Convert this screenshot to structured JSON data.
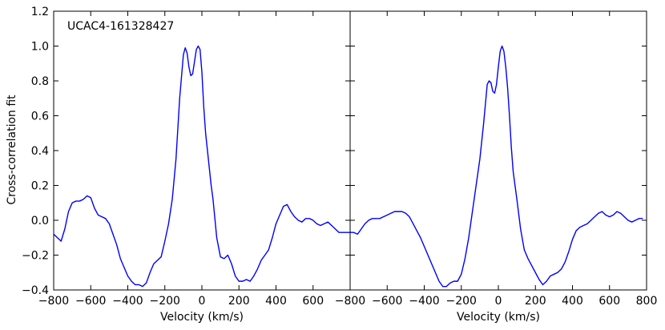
{
  "chart_data": {
    "type": "line",
    "ylabel": "Cross-correlation fit",
    "ylim": [
      -0.4,
      1.2
    ],
    "yticks": [
      -0.4,
      -0.2,
      0.0,
      0.2,
      0.4,
      0.6,
      0.8,
      1.0,
      1.2
    ],
    "ytick_labels": [
      "−0.4",
      "−0.2",
      "0.0",
      "0.2",
      "0.4",
      "0.6",
      "0.8",
      "1.0",
      "1.2"
    ],
    "line_color": "#0000ff",
    "grid": false,
    "panels": [
      {
        "xlabel": "Velocity (km/s)",
        "annotation": "UCAC4-161328427",
        "xlim": [
          -800,
          800
        ],
        "xticks": [
          -800,
          -600,
          -400,
          -200,
          0,
          200,
          400,
          600
        ],
        "xtick_labels": [
          "−800",
          "−600",
          "−400",
          "−200",
          "0",
          "200",
          "400",
          "600"
        ],
        "x": [
          -800,
          -780,
          -760,
          -740,
          -720,
          -700,
          -680,
          -660,
          -640,
          -620,
          -600,
          -580,
          -560,
          -540,
          -520,
          -500,
          -480,
          -460,
          -440,
          -420,
          -400,
          -380,
          -360,
          -340,
          -320,
          -300,
          -280,
          -260,
          -240,
          -220,
          -200,
          -180,
          -160,
          -140,
          -120,
          -100,
          -90,
          -80,
          -70,
          -60,
          -50,
          -40,
          -30,
          -20,
          -10,
          0,
          10,
          20,
          30,
          40,
          50,
          60,
          80,
          100,
          120,
          140,
          160,
          180,
          200,
          220,
          240,
          260,
          280,
          300,
          320,
          340,
          360,
          380,
          400,
          420,
          440,
          460,
          480,
          500,
          520,
          540,
          560,
          580,
          600,
          620,
          640,
          660,
          680,
          700,
          720,
          740,
          760,
          780,
          800
        ],
        "y": [
          -0.08,
          -0.1,
          -0.12,
          -0.05,
          0.05,
          0.1,
          0.11,
          0.11,
          0.12,
          0.14,
          0.13,
          0.07,
          0.03,
          0.02,
          0.01,
          -0.02,
          -0.08,
          -0.14,
          -0.22,
          -0.27,
          -0.32,
          -0.35,
          -0.37,
          -0.37,
          -0.38,
          -0.36,
          -0.3,
          -0.25,
          -0.23,
          -0.21,
          -0.12,
          -0.02,
          0.12,
          0.35,
          0.7,
          0.95,
          0.99,
          0.96,
          0.88,
          0.83,
          0.84,
          0.91,
          0.98,
          1.0,
          0.98,
          0.85,
          0.65,
          0.5,
          0.4,
          0.3,
          0.2,
          0.12,
          -0.1,
          -0.21,
          -0.22,
          -0.2,
          -0.25,
          -0.32,
          -0.35,
          -0.35,
          -0.34,
          -0.35,
          -0.32,
          -0.28,
          -0.23,
          -0.2,
          -0.17,
          -0.1,
          -0.02,
          0.03,
          0.08,
          0.09,
          0.05,
          0.02,
          0.0,
          -0.01,
          0.01,
          0.01,
          0.0,
          -0.02,
          -0.03,
          -0.02,
          -0.01,
          -0.03,
          -0.05,
          -0.07,
          -0.07,
          -0.07,
          -0.07
        ]
      },
      {
        "xlabel": "Velocity (km/s)",
        "annotation": "",
        "xlim": [
          -800,
          800
        ],
        "xticks": [
          -800,
          -600,
          -400,
          -200,
          0,
          200,
          400,
          600,
          800
        ],
        "xtick_labels": [
          "−800",
          "−600",
          "−400",
          "−200",
          "0",
          "200",
          "400",
          "600",
          "800"
        ],
        "x": [
          -800,
          -780,
          -760,
          -740,
          -720,
          -700,
          -680,
          -660,
          -640,
          -620,
          -600,
          -580,
          -560,
          -540,
          -520,
          -500,
          -480,
          -460,
          -440,
          -420,
          -400,
          -380,
          -360,
          -340,
          -320,
          -300,
          -280,
          -260,
          -240,
          -220,
          -200,
          -180,
          -160,
          -140,
          -120,
          -100,
          -80,
          -60,
          -50,
          -40,
          -30,
          -20,
          -10,
          0,
          10,
          20,
          30,
          40,
          50,
          60,
          70,
          80,
          100,
          120,
          140,
          160,
          180,
          200,
          220,
          240,
          260,
          280,
          300,
          320,
          340,
          360,
          380,
          400,
          420,
          440,
          460,
          480,
          500,
          520,
          540,
          560,
          580,
          600,
          620,
          640,
          660,
          680,
          700,
          720,
          740,
          760,
          780
        ],
        "y": [
          -0.07,
          -0.07,
          -0.08,
          -0.05,
          -0.02,
          0.0,
          0.01,
          0.01,
          0.01,
          0.02,
          0.03,
          0.04,
          0.05,
          0.05,
          0.05,
          0.04,
          0.02,
          -0.02,
          -0.06,
          -0.1,
          -0.15,
          -0.2,
          -0.25,
          -0.3,
          -0.35,
          -0.38,
          -0.38,
          -0.36,
          -0.35,
          -0.35,
          -0.31,
          -0.22,
          -0.1,
          0.05,
          0.2,
          0.35,
          0.55,
          0.78,
          0.8,
          0.79,
          0.74,
          0.73,
          0.78,
          0.88,
          0.97,
          1.0,
          0.97,
          0.88,
          0.76,
          0.6,
          0.42,
          0.28,
          0.12,
          -0.05,
          -0.17,
          -0.22,
          -0.26,
          -0.3,
          -0.34,
          -0.37,
          -0.35,
          -0.32,
          -0.31,
          -0.3,
          -0.28,
          -0.24,
          -0.18,
          -0.11,
          -0.06,
          -0.04,
          -0.03,
          -0.02,
          0.0,
          0.02,
          0.04,
          0.05,
          0.03,
          0.02,
          0.03,
          0.05,
          0.04,
          0.02,
          0.0,
          -0.01,
          0.0,
          0.01,
          0.01
        ]
      }
    ]
  }
}
